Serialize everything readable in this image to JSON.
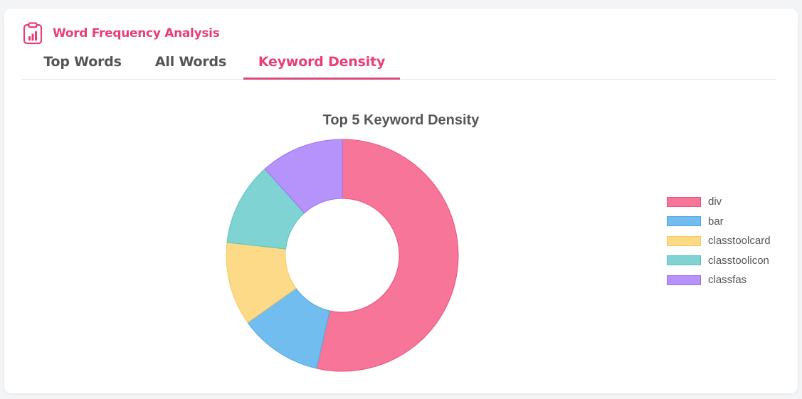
{
  "header": {
    "title": "Word Frequency Analysis",
    "icon": "clipboard-chart-icon",
    "accent_color": "#e83e7a"
  },
  "tabs": [
    {
      "label": "Top Words",
      "active": false
    },
    {
      "label": "All Words",
      "active": false
    },
    {
      "label": "Keyword Density",
      "active": true
    }
  ],
  "chart_data": {
    "type": "pie",
    "title": "Top 5 Keyword Density",
    "donut": true,
    "legend_position": "right",
    "categories": [
      "div",
      "bar",
      "classtoolcard",
      "classtoolicon",
      "classfas"
    ],
    "values": [
      53.5,
      11.6,
      11.6,
      11.6,
      11.6
    ],
    "colors": [
      "#f67599",
      "#72bdf0",
      "#fdda87",
      "#80d3d3",
      "#b693fa"
    ],
    "border_colors": [
      "#e8537f",
      "#4fa6e0",
      "#f7c85c",
      "#5cc0c0",
      "#9a70f0"
    ]
  }
}
